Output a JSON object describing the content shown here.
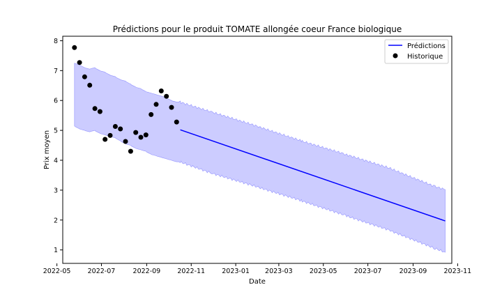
{
  "chart_data": {
    "type": "line",
    "title": "Prédictions pour le produit TOMATE allongée coeur France biologique",
    "xlabel": "Date",
    "ylabel": "Prix moyen",
    "xlim": [
      "2022-05-09",
      "2023-10-24"
    ],
    "ylim": [
      0.55,
      8.15
    ],
    "x_ticks": [
      "2022-05",
      "2022-07",
      "2022-09",
      "2022-11",
      "2023-01",
      "2023-03",
      "2023-05",
      "2023-07",
      "2023-09",
      "2023-11"
    ],
    "y_ticks": [
      "1",
      "2",
      "3",
      "4",
      "5",
      "6",
      "7",
      "8"
    ],
    "grid": false,
    "legend": {
      "position": "top-right",
      "entries": [
        {
          "label": "Prédictions",
          "style": "line",
          "color": "#0000ff"
        },
        {
          "label": "Historique",
          "style": "marker",
          "color": "#000000"
        }
      ]
    },
    "series": [
      {
        "name": "Prédictions",
        "kind": "line",
        "color": "#0000ff",
        "x": [
          "2022-10-17",
          "2023-10-15"
        ],
        "y": [
          5.02,
          1.97
        ]
      },
      {
        "name": "Historique",
        "kind": "scatter",
        "color": "#000000",
        "x": [
          "2022-05-25",
          "2022-06-01",
          "2022-06-08",
          "2022-06-15",
          "2022-06-22",
          "2022-06-29",
          "2022-07-06",
          "2022-07-13",
          "2022-07-20",
          "2022-07-27",
          "2022-08-03",
          "2022-08-10",
          "2022-08-17",
          "2022-08-24",
          "2022-08-31",
          "2022-09-07",
          "2022-09-14",
          "2022-09-21",
          "2022-09-28",
          "2022-10-05",
          "2022-10-12"
        ],
        "y": [
          7.77,
          7.27,
          6.79,
          6.51,
          5.73,
          5.63,
          4.7,
          4.83,
          5.13,
          5.05,
          4.63,
          4.3,
          4.93,
          4.77,
          4.85,
          5.53,
          5.87,
          6.32,
          6.14,
          5.77,
          5.28
        ]
      }
    ],
    "confidence_band": {
      "color": "#0000ff",
      "opacity": 0.2,
      "x": [
        "2022-05-25",
        "2022-06-01",
        "2022-06-08",
        "2022-06-15",
        "2022-06-22",
        "2022-06-29",
        "2022-07-06",
        "2022-07-13",
        "2022-07-20",
        "2022-07-27",
        "2022-08-03",
        "2022-08-10",
        "2022-08-17",
        "2022-08-24",
        "2022-08-31",
        "2022-09-07",
        "2022-09-14",
        "2022-09-21",
        "2022-09-28",
        "2022-10-05",
        "2022-10-12",
        "2022-10-17",
        "2022-12-01",
        "2023-02-01",
        "2023-04-01",
        "2023-06-01",
        "2023-08-01",
        "2023-10-01",
        "2023-10-15"
      ],
      "upper": [
        7.25,
        7.2,
        7.1,
        7.05,
        7.1,
        7.0,
        6.95,
        6.85,
        6.8,
        6.7,
        6.65,
        6.55,
        6.45,
        6.4,
        6.3,
        6.25,
        6.2,
        6.15,
        6.1,
        6.0,
        5.95,
        5.95,
        5.6,
        5.13,
        4.65,
        4.2,
        3.73,
        3.12,
        3.02
      ],
      "lower": [
        5.15,
        5.05,
        5.0,
        4.95,
        5.0,
        4.9,
        4.85,
        4.8,
        4.75,
        4.65,
        4.55,
        4.5,
        4.4,
        4.35,
        4.3,
        4.2,
        4.15,
        4.1,
        4.05,
        4.0,
        3.95,
        3.95,
        3.55,
        3.1,
        2.65,
        2.15,
        1.65,
        1.05,
        0.92
      ]
    }
  }
}
